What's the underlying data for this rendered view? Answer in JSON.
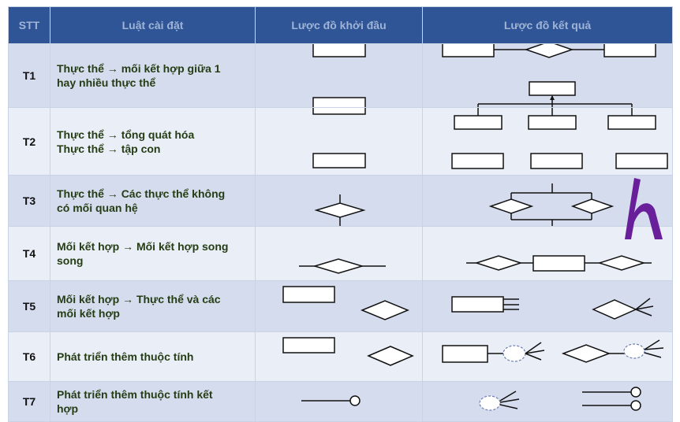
{
  "header": {
    "stt": "STT",
    "rule": "Luật cài đặt",
    "before": "Lược đồ khởi đầu",
    "after": "Lược đồ kết quả"
  },
  "rows": [
    {
      "id": "T1",
      "lines": [
        "Thực thể → mối kết hợp giữa 1",
        "hay nhiều thực thể"
      ]
    },
    {
      "id": "T2",
      "lines": [
        "Thực thể → tổng quát hóa",
        "Thực thể → tập con"
      ]
    },
    {
      "id": "T3",
      "lines": [
        "Thực thể → Các thực thể không",
        "có mối quan hệ"
      ]
    },
    {
      "id": "T4",
      "lines": [
        "Mối kết hợp → Mối kết hợp song",
        "song"
      ]
    },
    {
      "id": "T5",
      "lines": [
        "Mối kết hợp → Thực thể và các",
        "mối kết hợp"
      ]
    },
    {
      "id": "T6",
      "lines": [
        "Phát triển thêm thuộc tính"
      ]
    },
    {
      "id": "T7",
      "lines": [
        "Phát triển thêm thuộc tính kết",
        "hợp"
      ]
    }
  ],
  "colors": {
    "header_bg": "#2f5597",
    "header_text": "#9fb4d6",
    "row_odd": "#d5dcee",
    "row_even": "#eaeef7",
    "rule_text": "#253d14",
    "logo": "#6a1f9a"
  },
  "logo": {
    "icon": "h-letter-logo"
  }
}
